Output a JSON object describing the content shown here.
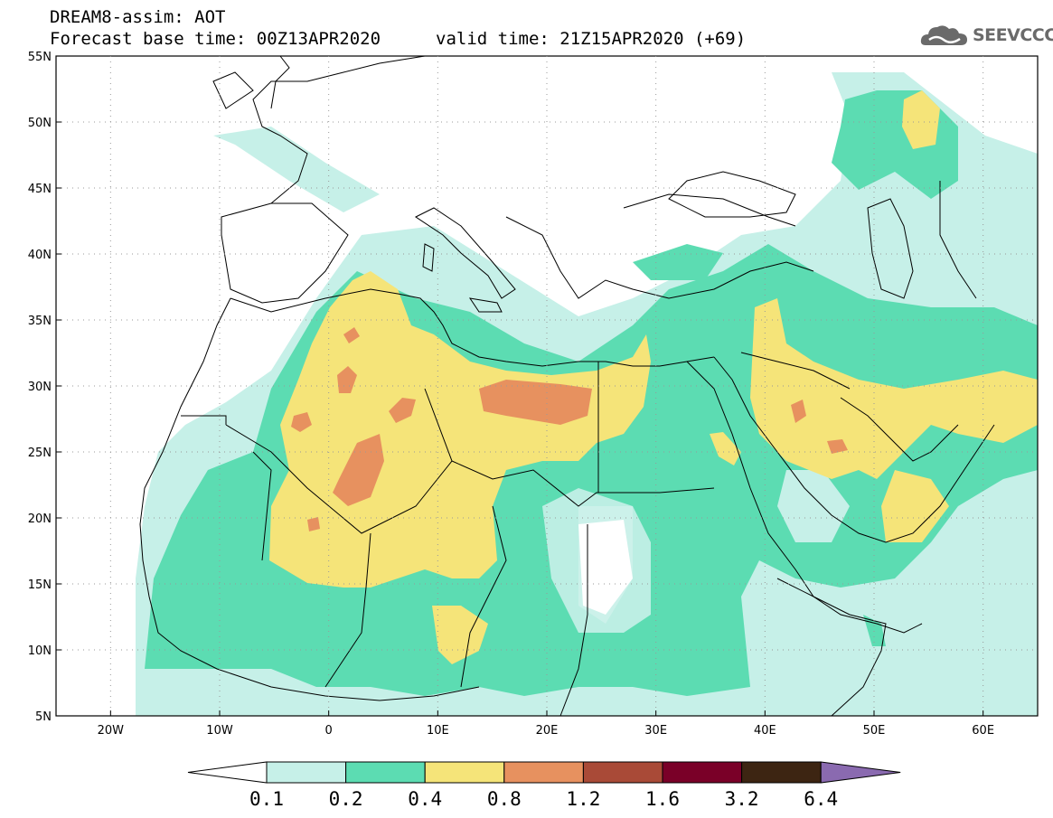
{
  "header": {
    "title_line1": "DREAM8-assim: AOT",
    "title_line2": "Forecast base time: 00Z13APR2020",
    "valid_time": "valid time: 21Z15APR2020 (+69)"
  },
  "logo": {
    "text": "SEEVCCC",
    "icon": "cloud-icon"
  },
  "map": {
    "lon_range": [
      -25,
      65
    ],
    "lat_range": [
      5,
      55
    ],
    "lat_ticks": [
      "55N",
      "50N",
      "45N",
      "40N",
      "35N",
      "30N",
      "25N",
      "20N",
      "15N",
      "10N",
      "5N"
    ],
    "lon_ticks": [
      "20W",
      "10W",
      "0",
      "10E",
      "20E",
      "30E",
      "40E",
      "50E",
      "60E"
    ]
  },
  "colorbar": {
    "labels": [
      "0.1",
      "0.2",
      "0.4",
      "0.8",
      "1.2",
      "1.6",
      "3.2",
      "6.4"
    ],
    "colors": [
      "#ffffff",
      "#c6f0e8",
      "#5cdcb2",
      "#f5e479",
      "#e7915f",
      "#a94a37",
      "#7a0028",
      "#3d2512",
      "#8a6ab0"
    ]
  }
}
